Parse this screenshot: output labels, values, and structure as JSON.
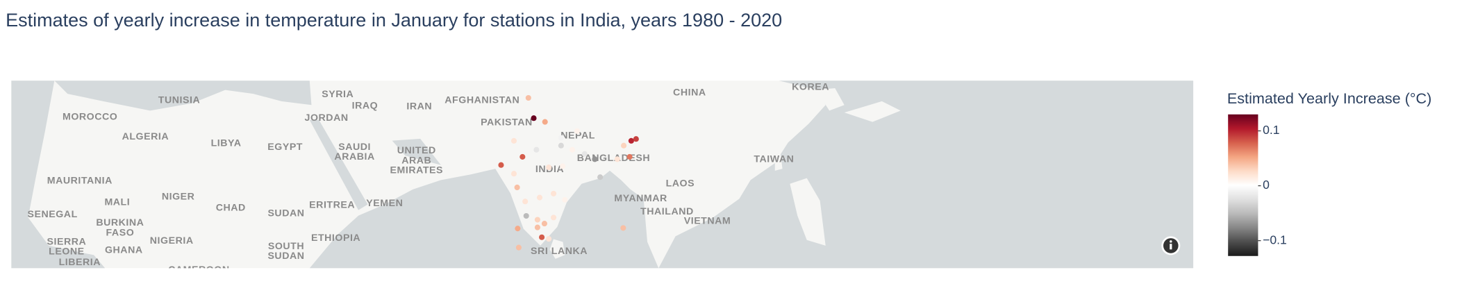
{
  "chart_data": {
    "type": "scattermap",
    "title": "Estimates of yearly increase in temperature in January for stations in India, years 1980 - 2020",
    "colorbar_title": "Estimated Yearly Increase (°C)",
    "colorbar_range": [
      -0.128,
      0.13
    ],
    "colorbar_ticks": [
      {
        "value": -0.1,
        "label": "−0.1"
      },
      0,
      0.1
    ],
    "colorscale": [
      [
        0,
        "rgb(26,26,26)"
      ],
      [
        0.1,
        "rgb(77,77,77)"
      ],
      [
        0.2,
        "rgb(135,135,135)"
      ],
      [
        0.3,
        "rgb(186,186,186)"
      ],
      [
        0.4,
        "rgb(224,224,224)"
      ],
      [
        0.5,
        "rgb(255,255,255)"
      ],
      [
        0.6,
        "rgb(253,219,199)"
      ],
      [
        0.7,
        "rgb(244,165,130)"
      ],
      [
        0.8,
        "rgb(214,96,77)"
      ],
      [
        0.9,
        "rgb(178,24,43)"
      ],
      [
        1,
        "rgb(103,0,31)"
      ]
    ],
    "lon": [
      75.0,
      76.0,
      78.1,
      73.9,
      69.9,
      72.3,
      76.5,
      81.1,
      83.2,
      85.5,
      87.4,
      88.4,
      94.2,
      95.1,
      92.8,
      93.9,
      91.6,
      81.4,
      78.8,
      72.3,
      72.9,
      74.4,
      77.1,
      79.7,
      81.8,
      74.6,
      76.7,
      78.0,
      79.7,
      76.7,
      73.0,
      77.5,
      78.8,
      73.2,
      92.7,
      84.1,
      81.1
    ],
    "lat": [
      34.0,
      30.8,
      30.2,
      24.4,
      23.0,
      27.1,
      25.6,
      26.3,
      25.6,
      24.9,
      24.0,
      20.9,
      27.1,
      27.4,
      26.3,
      24.4,
      24.0,
      22.8,
      22.6,
      21.5,
      19.1,
      16.6,
      17.3,
      18.0,
      16.9,
      14.0,
      13.3,
      12.6,
      13.7,
      11.9,
      11.7,
      10.1,
      9.8,
      8.2,
      11.8,
      28.7,
      27.6
    ],
    "values": [
      0.04,
      0.13,
      0.05,
      0.08,
      0.08,
      0.02,
      -0.02,
      -0.03,
      0.01,
      -0.02,
      -0.07,
      -0.04,
      0.1,
      0.09,
      0.03,
      0.07,
      0.02,
      0.01,
      0.02,
      0.02,
      0.04,
      0.02,
      0.02,
      0.02,
      0.01,
      -0.05,
      0.03,
      0.04,
      0.02,
      0.04,
      0.05,
      0.08,
      0.02,
      0.04,
      0.04,
      0.01,
      -0.01
    ],
    "map_labels": [
      [
        "TUNISIA"
      ],
      [
        "SYRIA"
      ],
      [
        "IRAQ"
      ],
      [
        "IRAN"
      ],
      [
        "AFGHANISTAN"
      ],
      [
        "CHINA"
      ],
      [
        "KOREA"
      ],
      [
        "MOROCCO"
      ],
      [
        "JORDAN"
      ],
      [
        "PAKISTAN"
      ],
      [
        "NEPAL"
      ],
      [
        "ALGERIA"
      ],
      [
        "LIBYA"
      ],
      [
        "EGYPT"
      ],
      [
        "SAUDI",
        "ARABIA"
      ],
      [
        "UNITED",
        "ARAB",
        "EMIRATES"
      ],
      [
        "INDIA"
      ],
      [
        "BANGLADESH"
      ],
      [
        "TAIWAN"
      ],
      [
        "MAURITANIA"
      ],
      [
        "LAOS"
      ],
      [
        "MALI"
      ],
      [
        "NIGER"
      ],
      [
        "ERITREA"
      ],
      [
        "YEMEN"
      ],
      [
        "MYANMAR"
      ],
      [
        "SENEGAL"
      ],
      [
        "CHAD"
      ],
      [
        "SUDAN"
      ],
      [
        "THAILAND"
      ],
      [
        "BURKINA",
        "FASO"
      ],
      [
        "VIETNAM"
      ],
      [
        "SIERRA",
        "LEONE"
      ],
      [
        "GHANA"
      ],
      [
        "NIGERIA"
      ],
      [
        "ETHIOPIA"
      ],
      [
        "SOUTH",
        "SUDAN"
      ],
      [
        "SRI LANKA"
      ],
      [
        "LIBERIA"
      ],
      [
        "CAMEROON"
      ]
    ]
  }
}
